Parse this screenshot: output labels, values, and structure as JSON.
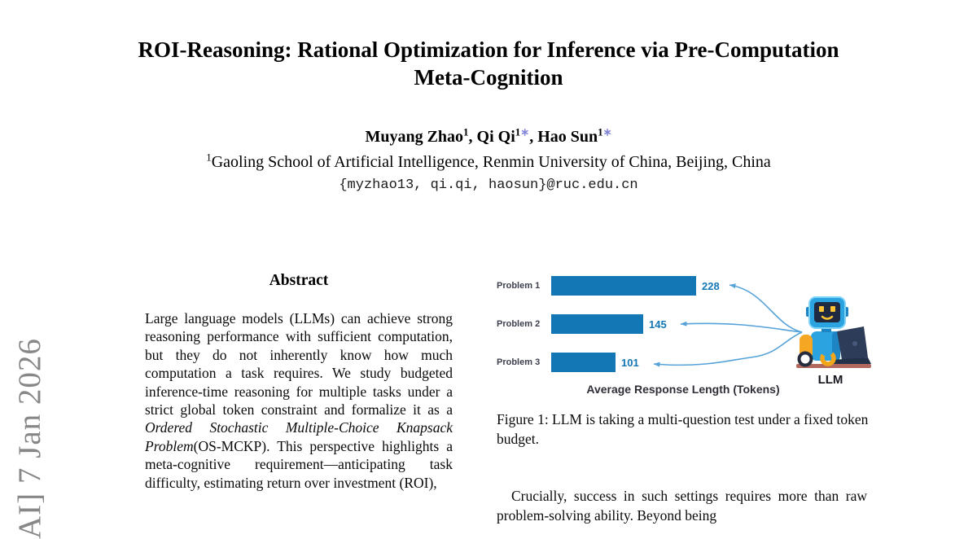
{
  "watermark": {
    "text": "AI] 7 Jan 2026"
  },
  "header": {
    "title_line1": "ROI-Reasoning: Rational Optimization for Inference via Pre-Computation",
    "title_line2": "Meta-Cognition",
    "author_separator": ", ",
    "authors": [
      {
        "name": "Muyang Zhao",
        "sup": "1",
        "star": ""
      },
      {
        "name": "Qi Qi",
        "sup": "1",
        "star": "∗"
      },
      {
        "name": "Hao Sun",
        "sup": "1",
        "star": "∗"
      }
    ],
    "affiliation_sup": "1",
    "affiliation": "Gaoling School of Artificial Intelligence, Renmin University of China, Beijing, China",
    "email": "{myzhao13, qi.qi, haosun}@ruc.edu.cn"
  },
  "abstract": {
    "heading": "Abstract",
    "body_before": "Large language models (LLMs) can achieve strong reasoning performance with sufficient computation, but they do not inherently know how much computation a task requires. We study budgeted inference-time reasoning for multiple tasks under a strict global token constraint and formalize it as a ",
    "body_italic": "Ordered Stochastic Multiple-Choice Knapsack Problem",
    "body_after": "(OS-MCKP). This perspective highlights a meta-cognitive requirement—anticipating task difficulty, estimating return over investment (ROI),"
  },
  "chart_data": {
    "type": "bar",
    "orientation": "horizontal",
    "categories": [
      "Problem 1",
      "Problem 2",
      "Problem 3"
    ],
    "values": [
      228,
      145,
      101
    ],
    "xlabel": "Average Response Length (Tokens)",
    "value_labels_shown": true,
    "legend": "none",
    "annotation": "curved arrows connect each bar value to the LLM robot icon"
  },
  "figure": {
    "robot_label": "LLM",
    "caption": "Figure 1: LLM is taking a multi-question test under a fixed token budget."
  },
  "main_text": {
    "paragraph": "Crucially, success in such settings requires more than raw problem-solving ability. Beyond being"
  },
  "colors": {
    "bar-blue": "#1377b6",
    "arrow-blue": "#55a2d9",
    "star-purple": "#8486d8",
    "watermark-gray": "#878787",
    "chart-label-dark": "#3d414f",
    "axis-label-dark": "#2e2e36"
  }
}
